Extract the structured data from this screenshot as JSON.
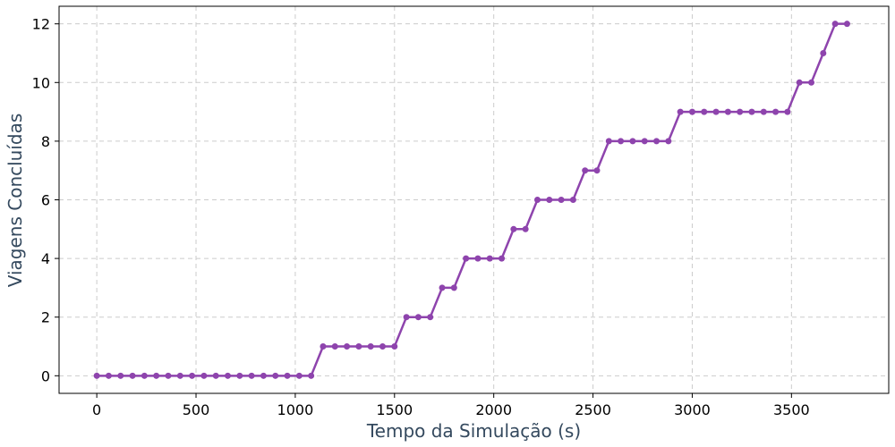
{
  "chart_data": {
    "type": "line",
    "title": "",
    "xlabel": "Tempo da Simulação (s)",
    "ylabel": "Viagens Concluídas",
    "xlim": [
      -190,
      3990
    ],
    "ylim": [
      -0.6,
      12.6
    ],
    "xticks": [
      0,
      500,
      1000,
      1500,
      2000,
      2500,
      3000,
      3500
    ],
    "yticks": [
      0,
      2,
      4,
      6,
      8,
      10,
      12
    ],
    "grid": true,
    "legend": "none",
    "series": [
      {
        "color": "#8e44ad",
        "x": [
          0,
          60,
          120,
          180,
          240,
          300,
          360,
          420,
          480,
          540,
          600,
          660,
          720,
          780,
          840,
          900,
          960,
          1020,
          1080,
          1140,
          1200,
          1260,
          1320,
          1380,
          1440,
          1500,
          1560,
          1620,
          1680,
          1740,
          1800,
          1860,
          1920,
          1980,
          2040,
          2100,
          2160,
          2220,
          2280,
          2340,
          2400,
          2460,
          2520,
          2580,
          2640,
          2700,
          2760,
          2820,
          2880,
          2940,
          3000,
          3060,
          3120,
          3180,
          3240,
          3300,
          3360,
          3420,
          3480,
          3540,
          3600,
          3660,
          3720,
          3780
        ],
        "values": [
          0,
          0,
          0,
          0,
          0,
          0,
          0,
          0,
          0,
          0,
          0,
          0,
          0,
          0,
          0,
          0,
          0,
          0,
          0,
          1,
          1,
          1,
          1,
          1,
          1,
          1,
          2,
          2,
          2,
          3,
          3,
          4,
          4,
          4,
          4,
          5,
          5,
          6,
          6,
          6,
          6,
          7,
          7,
          8,
          8,
          8,
          8,
          8,
          8,
          9,
          9,
          9,
          9,
          9,
          9,
          9,
          9,
          9,
          9,
          10,
          10,
          11,
          12,
          12
        ]
      }
    ]
  }
}
